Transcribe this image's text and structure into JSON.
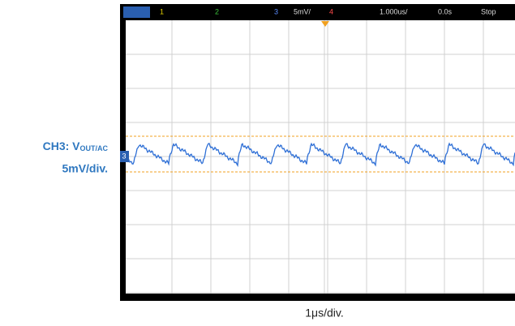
{
  "channel_label": {
    "prefix": "CH3: V",
    "subscript": "OUT/AC",
    "scale": "5mV/div."
  },
  "time_label": "1μs/div.",
  "scope_bar": {
    "ch1": "1",
    "ch2": "2",
    "ch3": "3",
    "ch3_scale": "5mV/",
    "ch4": "4",
    "timebase": "1.000us/",
    "delay": "0.0s",
    "status": "Stop"
  },
  "trace_marker": "3"
}
